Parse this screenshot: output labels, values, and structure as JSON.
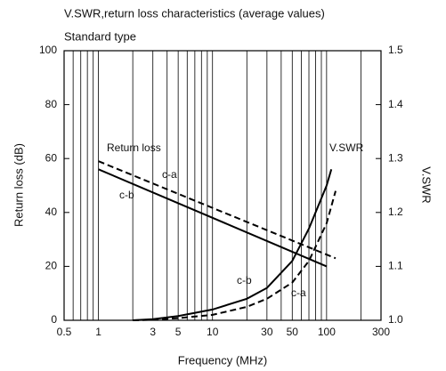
{
  "chart_data": {
    "type": "line",
    "title": "V.SWR,return loss characteristics (average values)",
    "subtitle": "Standard type",
    "x_label": "Frequency (MHz)",
    "y_label": "Return loss (dB)",
    "y2_label": "V.SWR",
    "log_x": true,
    "xlim": [
      0.5,
      300
    ],
    "xticks": [
      0.5,
      1,
      3,
      5,
      10,
      30,
      50,
      100,
      300
    ],
    "x_minor_grid": [
      0.6,
      0.7,
      0.8,
      0.9,
      2,
      4,
      6,
      7,
      8,
      9,
      20,
      40,
      60,
      70,
      80,
      90,
      200
    ],
    "ylim": [
      0,
      100
    ],
    "yticks": [
      0,
      20,
      40,
      60,
      80,
      100
    ],
    "y2lim": [
      1.0,
      1.5
    ],
    "y2ticks": [
      {
        "value": 1.0,
        "label": "1.0"
      },
      1.1,
      1.2,
      1.3,
      1.4,
      1.5
    ],
    "annotations": [
      "Return loss",
      "V.SWR"
    ],
    "series": [
      {
        "name": "c-b",
        "color": "#000000",
        "dashed": false,
        "x": [
          1,
          100
        ],
        "values": [
          56,
          20
        ]
      },
      {
        "name": "c-a",
        "color": "#000000",
        "dashed": true,
        "x": [
          1,
          120
        ],
        "values": [
          59,
          23
        ]
      },
      {
        "name": "c-b",
        "color": "#000000",
        "dashed": false,
        "axis": "y2",
        "x": [
          2,
          3,
          5,
          10,
          20,
          30,
          50,
          70,
          100,
          110
        ],
        "values": [
          1.0,
          1.002,
          1.008,
          1.02,
          1.04,
          1.06,
          1.11,
          1.17,
          1.25,
          1.28
        ]
      },
      {
        "name": "c-a",
        "color": "#000000",
        "dashed": true,
        "axis": "y2",
        "x": [
          2,
          3,
          5,
          10,
          20,
          30,
          50,
          70,
          100,
          120
        ],
        "values": [
          1.0,
          1.001,
          1.004,
          1.01,
          1.025,
          1.04,
          1.07,
          1.11,
          1.18,
          1.24
        ]
      }
    ]
  }
}
